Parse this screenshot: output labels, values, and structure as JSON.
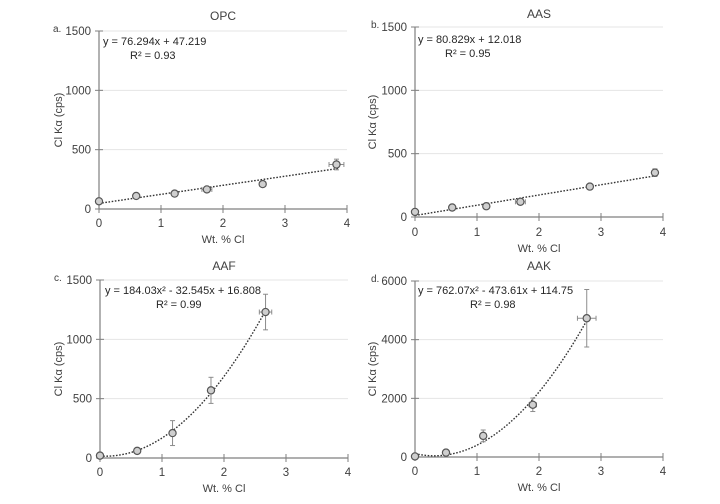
{
  "chart_data": [
    {
      "type": "scatter",
      "panel_label": "a.",
      "title": "OPC",
      "xlabel": "Wt. % Cl",
      "ylabel": "Cl Kα (cps)",
      "xlim": [
        0,
        4
      ],
      "ylim": [
        0,
        1500
      ],
      "xticks": [
        "0",
        "1",
        "2",
        "3",
        "4"
      ],
      "yticks": [
        "0",
        "500",
        "1000",
        "1500"
      ],
      "ytick_values": [
        0,
        500,
        1000,
        1500
      ],
      "grid": true,
      "trendline": {
        "kind": "linear",
        "coef": [
          47.219,
          76.294
        ],
        "equation": "y = 76.294x + 47.219",
        "r2": "R² = 0.93"
      },
      "points": [
        {
          "x": 0.0,
          "y": 65,
          "xerr": 0.02,
          "yerr": 8
        },
        {
          "x": 0.6,
          "y": 110,
          "xerr": 0.03,
          "yerr": 10
        },
        {
          "x": 1.22,
          "y": 130,
          "xerr": 0.03,
          "yerr": 10
        },
        {
          "x": 1.74,
          "y": 165,
          "xerr": 0.08,
          "yerr": 10
        },
        {
          "x": 2.64,
          "y": 210,
          "xerr": 0.05,
          "yerr": 10
        },
        {
          "x": 3.83,
          "y": 375,
          "xerr": 0.12,
          "yerr": 45
        }
      ]
    },
    {
      "type": "scatter",
      "panel_label": "b.",
      "title": "AAS",
      "xlabel": "Wt. % Cl",
      "ylabel": "Cl Kα (cps)",
      "xlim": [
        0,
        4
      ],
      "ylim": [
        0,
        1500
      ],
      "xticks": [
        "0",
        "1",
        "2",
        "3",
        "4"
      ],
      "yticks": [
        "0",
        "500",
        "1000",
        "1500"
      ],
      "ytick_values": [
        0,
        500,
        1000,
        1500
      ],
      "grid": true,
      "trendline": {
        "kind": "linear",
        "coef": [
          12.018,
          80.829
        ],
        "equation": "y = 80.829x + 12.018",
        "r2": "R² = 0.95"
      },
      "points": [
        {
          "x": 0.0,
          "y": 40,
          "xerr": 0.02,
          "yerr": 10
        },
        {
          "x": 0.6,
          "y": 75,
          "xerr": 0.03,
          "yerr": 10
        },
        {
          "x": 1.15,
          "y": 85,
          "xerr": 0.03,
          "yerr": 12
        },
        {
          "x": 1.7,
          "y": 120,
          "xerr": 0.08,
          "yerr": 10
        },
        {
          "x": 2.82,
          "y": 240,
          "xerr": 0.05,
          "yerr": 20
        },
        {
          "x": 3.87,
          "y": 350,
          "xerr": 0.03,
          "yerr": 30
        }
      ]
    },
    {
      "type": "scatter",
      "panel_label": "c.",
      "title": "AAF",
      "xlabel": "Wt. % Cl",
      "ylabel": "Cl Kα (cps)",
      "xlim": [
        0,
        4
      ],
      "ylim": [
        0,
        1500
      ],
      "xticks": [
        "0",
        "1",
        "2",
        "3",
        "4"
      ],
      "yticks": [
        "0",
        "500",
        "1000",
        "1500"
      ],
      "ytick_values": [
        0,
        500,
        1000,
        1500
      ],
      "grid": true,
      "trendline": {
        "kind": "quadratic",
        "coef": [
          16.808,
          -32.545,
          184.03
        ],
        "equation": "y = 184.03x² - 32.545x + 16.808",
        "r2": "R² = 0.99",
        "xmax": 2.67
      },
      "points": [
        {
          "x": 0.0,
          "y": 20,
          "xerr": 0.02,
          "yerr": 10
        },
        {
          "x": 0.6,
          "y": 60,
          "xerr": 0.03,
          "yerr": 8
        },
        {
          "x": 1.17,
          "y": 210,
          "xerr": 0.03,
          "yerr": 105
        },
        {
          "x": 1.79,
          "y": 570,
          "xerr": 0.03,
          "yerr": 110
        },
        {
          "x": 2.67,
          "y": 1230,
          "xerr": 0.1,
          "yerr": 150
        }
      ]
    },
    {
      "type": "scatter",
      "panel_label": "d.",
      "title": "AAK",
      "xlabel": "Wt. % Cl",
      "ylabel": "Cl Kα (cps)",
      "xlim": [
        0,
        4
      ],
      "ylim": [
        0,
        6000
      ],
      "xticks": [
        "0",
        "1",
        "2",
        "3",
        "4"
      ],
      "yticks": [
        "0",
        "2000",
        "4000",
        "6000"
      ],
      "ytick_values": [
        0,
        2000,
        4000,
        6000
      ],
      "grid": true,
      "trendline": {
        "kind": "quadratic",
        "coef": [
          114.75,
          -473.61,
          762.07
        ],
        "equation": "y = 762.07x² - 473.61x + 114.75",
        "r2": "R² = 0.98",
        "xmax": 2.77
      },
      "points": [
        {
          "x": 0.0,
          "y": 20,
          "xerr": 0.03,
          "yerr": 20
        },
        {
          "x": 0.5,
          "y": 150,
          "xerr": 0.03,
          "yerr": 30
        },
        {
          "x": 1.1,
          "y": 720,
          "xerr": 0.03,
          "yerr": 200
        },
        {
          "x": 1.9,
          "y": 1780,
          "xerr": 0.06,
          "yerr": 230
        },
        {
          "x": 2.77,
          "y": 4730,
          "xerr": 0.15,
          "yerr": 980
        }
      ]
    }
  ]
}
